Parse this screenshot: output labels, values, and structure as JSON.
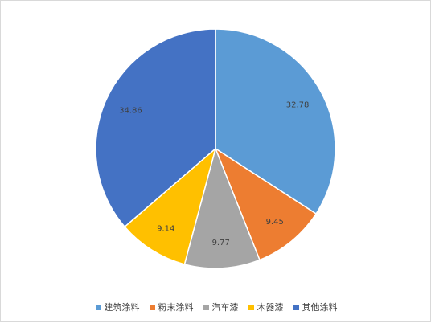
{
  "chart_data": {
    "type": "pie",
    "title": "",
    "categories": [
      "建筑涂料",
      "粉末涂料",
      "汽车漆",
      "木器漆",
      "其他涂料"
    ],
    "values": [
      32.78,
      9.45,
      9.77,
      9.14,
      34.86
    ],
    "value_labels": [
      "32.78",
      "9.45",
      "9.77",
      "9.14",
      "34.86"
    ],
    "colors": [
      "#5b9bd5",
      "#ed7d31",
      "#a5a5a5",
      "#ffc000",
      "#4472c4"
    ],
    "start_angle": "12 o'clock",
    "direction": "clockwise",
    "legend_position": "bottom"
  },
  "legend": [
    {
      "label": "建筑涂料",
      "color": "#5b9bd5"
    },
    {
      "label": "粉末涂料",
      "color": "#ed7d31"
    },
    {
      "label": "汽车漆",
      "color": "#a5a5a5"
    },
    {
      "label": "木器漆",
      "color": "#ffc000"
    },
    {
      "label": "其他涂料",
      "color": "#4472c4"
    }
  ]
}
